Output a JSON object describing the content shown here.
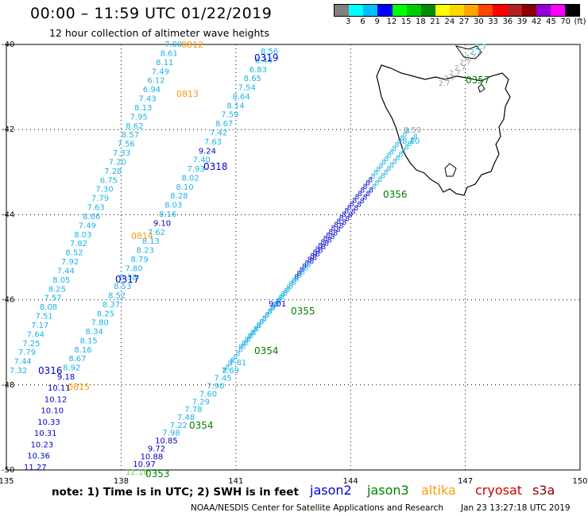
{
  "header": {
    "title": "00:00 – 11:59 UTC 01/22/2019",
    "subtitle": "12 hour collection of altimeter wave heights"
  },
  "color_scale": {
    "colors": [
      "#808080",
      "#00ffff",
      "#00bfff",
      "#0000ff",
      "#00ff00",
      "#00cd00",
      "#008b00",
      "#ffff00",
      "#ffd700",
      "#ffa500",
      "#ff4500",
      "#ff0000",
      "#b22222",
      "#8b0000",
      "#9400d3",
      "#ff00ff",
      "#000000"
    ],
    "labels": [
      "3",
      "6",
      "9",
      "12",
      "15",
      "18",
      "21",
      "24",
      "27",
      "30",
      "33",
      "36",
      "39",
      "42",
      "45",
      "70",
      "(ft)"
    ]
  },
  "axes": {
    "lat_labels": [
      "-40",
      "-42",
      "-44",
      "-46",
      "-48",
      "-50"
    ],
    "lon_labels": [
      "135",
      "138",
      "141",
      "144",
      "147",
      "150"
    ]
  },
  "palette": {
    "jason2": "#0000cc",
    "jason3": "#008000",
    "altika": "#ff9900",
    "cryosat": "#cc0000",
    "s3a": "#8b0000",
    "lightblue": "#1ab3e6",
    "gray": "#999999",
    "darkgreen": "#006400"
  },
  "tracks": {
    "altika_a": {
      "labels": [
        {
          "text": "0812",
          "sat": "altika"
        },
        {
          "text": "0813",
          "sat": "altika"
        },
        {
          "text": "0814",
          "sat": "altika"
        },
        {
          "text": "0815",
          "sat": "altika"
        }
      ],
      "values": [
        "7.00",
        "8.61",
        "8.11",
        "7.49",
        "6.12",
        "6.94",
        "7.43",
        "8.13",
        "7.95",
        "8.62",
        "8.57",
        "7.56",
        "7.33",
        "7.20",
        "7.28",
        "6.75",
        "7.30",
        "7.79",
        "7.63",
        "8.66",
        "7.49",
        "8.03",
        "7.82",
        "8.52",
        "7.92",
        "7.44",
        "8.05",
        "8.25",
        "7.57",
        "8.08",
        "7.51",
        "7.17",
        "7.64",
        "7.25",
        "7.79",
        "7.44",
        "7.32"
      ]
    },
    "jason2_a": {
      "labels": [
        {
          "text": "0319",
          "sat": "jason2"
        },
        {
          "text": "0318",
          "sat": "jason2"
        },
        {
          "text": "0317",
          "sat": "jason2"
        },
        {
          "text": "0316",
          "sat": "jason2"
        }
      ],
      "values": [
        "8.56",
        "8.44",
        "6.83",
        "8.65",
        "7.54",
        "8.64",
        "8.14",
        "7.59",
        "8.67",
        "7.42",
        "7.63",
        "9.24",
        "7.40",
        "7.93",
        "8.02",
        "8.10",
        "8.28",
        "8.03",
        "8.16",
        "9.10",
        "7.62",
        "8.13",
        "8.23",
        "8.79",
        "7.80",
        "8.38",
        "8.53",
        "8.52",
        "8.37",
        "8.25",
        "7.80",
        "8.34",
        "8.15",
        "8.16",
        "8.67",
        "8.92",
        "9.18"
      ]
    },
    "jason2_b": {
      "values": [
        "10.11",
        "10.12",
        "10.10",
        "10.33",
        "10.31",
        "10.23",
        "10.36",
        "11.27"
      ]
    },
    "jason3_tracks": {
      "labels": [
        {
          "text": "0357",
          "sat": "jason3"
        },
        {
          "text": "0356",
          "sat": "jason3"
        },
        {
          "text": "0355",
          "sat": "jason3"
        },
        {
          "text": "0354",
          "sat": "jason3"
        },
        {
          "text": "0354",
          "sat": "jason3"
        },
        {
          "text": "0353",
          "sat": "jason3"
        }
      ]
    },
    "track_c": {
      "values": [
        "7.81",
        "7.69",
        "7.45",
        "7.90",
        "7.60",
        "7.29",
        "7.78",
        "7.48",
        "7.22",
        "7.98",
        "10.85",
        "9.72",
        "10.88",
        "10.97",
        "12.16"
      ]
    },
    "track_c_extra": {
      "values": [
        "9.01",
        "0.59",
        "8.10"
      ]
    }
  },
  "footer": {
    "note": "note: 1) Time is in UTC; 2) SWH is in feet",
    "legend": [
      {
        "name": "jason2",
        "color": "#0000cc"
      },
      {
        "name": "jason3",
        "color": "#008000"
      },
      {
        "name": "altika",
        "color": "#ff9900"
      },
      {
        "name": "cryosat",
        "color": "#cc0000"
      },
      {
        "name": "s3a",
        "color": "#8b0000"
      }
    ],
    "credit": "NOAA/NESDIS Center for Satellite Applications and Research",
    "timestamp": "Jan 23 13:27:18 UTC 2019"
  }
}
